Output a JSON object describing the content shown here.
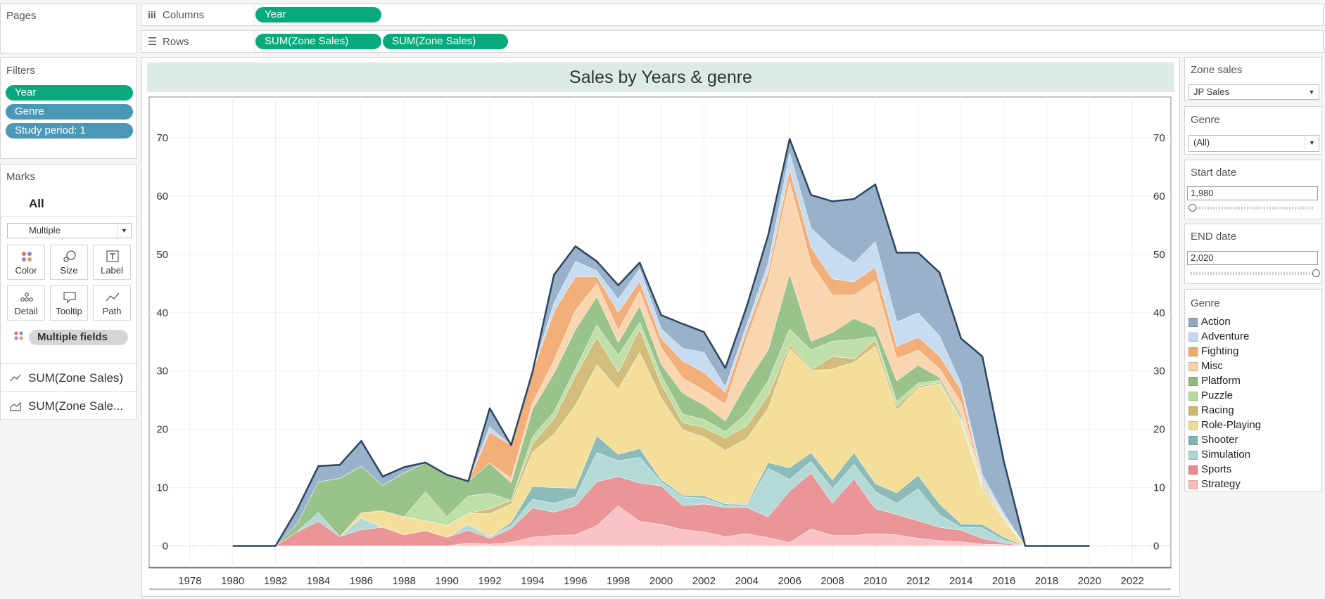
{
  "pages": {
    "title": "Pages"
  },
  "shelves": {
    "columns_label": "Columns",
    "rows_label": "Rows",
    "columns_pills": [
      "Year"
    ],
    "rows_pills": [
      "SUM(Zone Sales)",
      "SUM(Zone Sales)"
    ]
  },
  "filters": {
    "title": "Filters",
    "items": [
      "Year",
      "Genre",
      "Study period: 1"
    ]
  },
  "marks": {
    "title": "Marks",
    "tab_all": "All",
    "mark_type": "Multiple",
    "buttons": [
      "Color",
      "Size",
      "Label",
      "Detail",
      "Tooltip",
      "Path"
    ],
    "multiple_fields": "Multiple fields",
    "rows": [
      "SUM(Zone Sales)",
      "SUM(Zone Sale..."
    ]
  },
  "parameters": {
    "zone_sales_title": "Zone sales",
    "zone_sales_value": "JP Sales",
    "genre_title": "Genre",
    "genre_value": "(All)",
    "start_date_title": "Start date",
    "start_date_value": "1,980",
    "start_date_fraction": 0.0,
    "end_date_title": "END date",
    "end_date_value": "2,020",
    "end_date_fraction": 1.0
  },
  "legend": {
    "title": "Genre",
    "items": [
      {
        "label": "Action",
        "color": "#8fa8c4"
      },
      {
        "label": "Adventure",
        "color": "#c2d8ef"
      },
      {
        "label": "Fighting",
        "color": "#f2a66a"
      },
      {
        "label": "Misc",
        "color": "#f8d2a6"
      },
      {
        "label": "Platform",
        "color": "#8ebc7e"
      },
      {
        "label": "Puzzle",
        "color": "#b7dc9f"
      },
      {
        "label": "Racing",
        "color": "#cdb66e"
      },
      {
        "label": "Role-Playing",
        "color": "#f3dc8f"
      },
      {
        "label": "Shooter",
        "color": "#80b4b3"
      },
      {
        "label": "Simulation",
        "color": "#acd6d3"
      },
      {
        "label": "Sports",
        "color": "#e88a8d"
      },
      {
        "label": "Strategy",
        "color": "#f9bdbf"
      }
    ]
  },
  "chart_data": {
    "type": "area",
    "title": "Sales by Years & genre",
    "xlabel": "",
    "ylabel": "",
    "x": [
      1980,
      1981,
      1982,
      1983,
      1984,
      1985,
      1986,
      1987,
      1988,
      1989,
      1990,
      1991,
      1992,
      1993,
      1994,
      1995,
      1996,
      1997,
      1998,
      1999,
      2000,
      2001,
      2002,
      2003,
      2004,
      2005,
      2006,
      2007,
      2008,
      2009,
      2010,
      2011,
      2012,
      2013,
      2014,
      2015,
      2016,
      2017,
      2018,
      2019,
      2020
    ],
    "x_ticks": [
      1978,
      1980,
      1982,
      1984,
      1986,
      1988,
      1990,
      1992,
      1994,
      1996,
      1998,
      2000,
      2002,
      2004,
      2006,
      2008,
      2010,
      2012,
      2014,
      2016,
      2018,
      2020,
      2022
    ],
    "y_ticks": [
      0,
      10,
      20,
      30,
      40,
      50,
      60,
      70
    ],
    "xlim": [
      1976.1,
      2023.8
    ],
    "ylim": [
      -3.8,
      77
    ],
    "grid": true,
    "series": [
      {
        "name": "Strategy",
        "values": [
          0,
          0,
          0,
          0,
          0,
          0,
          0,
          0,
          0,
          0,
          0,
          0.5,
          0.3,
          0.6,
          1.5,
          1.8,
          1.9,
          3.5,
          6.9,
          4.2,
          3.7,
          2.8,
          2.4,
          1.6,
          2.1,
          1.4,
          0.6,
          2.9,
          1.8,
          1.8,
          2.1,
          1.9,
          1.3,
          0.9,
          0.7,
          0.3,
          0.2,
          0,
          0,
          0,
          0
        ]
      },
      {
        "name": "Sports",
        "values": [
          0,
          0,
          0,
          2.4,
          4.2,
          1.6,
          2.8,
          3.2,
          1.9,
          2.6,
          1.5,
          2.2,
          1,
          2.4,
          5,
          4,
          5,
          7.5,
          5,
          6.6,
          6.6,
          4.1,
          4.8,
          5,
          4.5,
          3.6,
          8.8,
          9.6,
          5.5,
          9.7,
          4.3,
          3.5,
          3,
          2.3,
          2,
          1,
          0.3,
          0,
          0,
          0,
          0
        ]
      },
      {
        "name": "Simulation",
        "values": [
          0,
          0,
          0,
          0,
          1.5,
          0,
          2,
          0,
          0,
          0,
          0,
          1,
          0.3,
          0.5,
          1.5,
          1.5,
          1.5,
          5,
          2.7,
          4.4,
          0.7,
          1.5,
          1,
          0.3,
          0.2,
          8.3,
          2,
          2,
          2.5,
          2.5,
          2.9,
          1.9,
          5.5,
          2.1,
          0.5,
          1.8,
          0.5,
          0,
          0,
          0,
          0
        ]
      },
      {
        "name": "Shooter",
        "values": [
          0,
          0,
          0,
          0,
          0,
          0,
          0,
          0,
          0,
          0,
          0,
          0,
          0,
          0.5,
          2.2,
          2.7,
          1.5,
          2.9,
          1.1,
          1.5,
          0.4,
          0.3,
          0.4,
          0.3,
          0.3,
          1,
          2,
          1.5,
          1.5,
          2,
          1.4,
          1.8,
          2.3,
          1.9,
          0.6,
          0.6,
          0.5,
          0,
          0,
          0,
          0
        ]
      },
      {
        "name": "Role-Playing",
        "values": [
          0,
          0,
          0,
          0,
          0,
          0,
          0.9,
          2.8,
          3.1,
          1.7,
          2,
          1.9,
          3.9,
          3.2,
          5.9,
          9.2,
          14.2,
          12.2,
          11.2,
          16.5,
          14,
          11.2,
          10.1,
          9.2,
          11.3,
          9.3,
          20.5,
          14.1,
          19,
          15.5,
          23.6,
          14.2,
          15,
          20.6,
          17.5,
          6.2,
          3,
          0,
          0,
          0,
          0
        ]
      },
      {
        "name": "Racing",
        "values": [
          0,
          0,
          0,
          0,
          0,
          0,
          0,
          0,
          0,
          0,
          0,
          0,
          0.9,
          0.6,
          1.4,
          2.6,
          5.1,
          4.7,
          2.9,
          4,
          2.4,
          1.3,
          1.6,
          2.1,
          2.2,
          2.2,
          0.6,
          0.1,
          2.2,
          0.6,
          1,
          0.7,
          0.3,
          0.2,
          0.3,
          0,
          0,
          0,
          0,
          0,
          0
        ]
      },
      {
        "name": "Puzzle",
        "values": [
          0,
          0,
          0,
          0,
          0,
          0,
          0,
          0,
          0,
          5,
          1.5,
          3,
          2.6,
          0,
          1.3,
          1.2,
          1.2,
          2.1,
          2.9,
          1.2,
          1.5,
          1.4,
          1.4,
          1.1,
          2.2,
          2.5,
          2.7,
          3.4,
          2.6,
          3.3,
          0.6,
          0.8,
          0.5,
          0.4,
          0.3,
          0.2,
          0.1,
          0,
          0,
          0,
          0
        ]
      },
      {
        "name": "Platform",
        "values": [
          0,
          0,
          0,
          1.3,
          5.3,
          10,
          8,
          4.4,
          7.5,
          5,
          7.2,
          2.5,
          5.2,
          3,
          4.7,
          6.6,
          6.7,
          4.9,
          2.2,
          2.8,
          1.9,
          3.6,
          2.5,
          1.8,
          5.2,
          5.3,
          9.5,
          1.5,
          1.5,
          3.6,
          1.6,
          3.5,
          3.1,
          0.5,
          0.5,
          0.3,
          0.2,
          0,
          0,
          0,
          0
        ]
      },
      {
        "name": "Misc",
        "values": [
          0,
          0,
          0,
          0,
          0,
          0,
          0,
          0,
          0,
          0,
          0,
          0,
          0,
          0.8,
          1.1,
          2.2,
          3.3,
          2.2,
          2.1,
          2.5,
          2.8,
          2.6,
          2.5,
          2.9,
          7.6,
          12,
          15.8,
          13.3,
          6.4,
          4,
          8,
          3.8,
          2.6,
          1.5,
          2.2,
          0.5,
          0.2,
          0,
          0,
          0,
          0
        ]
      },
      {
        "name": "Fighting",
        "values": [
          0,
          0,
          0,
          0,
          0,
          0,
          0,
          0,
          0,
          0,
          0,
          0,
          5.3,
          5.7,
          5.3,
          8.4,
          5.8,
          1.2,
          3.1,
          1.7,
          1.6,
          2.9,
          3.1,
          2,
          1.4,
          1.4,
          2.1,
          2.8,
          2.8,
          2.3,
          2.3,
          2.1,
          2.2,
          2.2,
          2.2,
          0.3,
          0.1,
          0,
          0,
          0,
          0
        ]
      },
      {
        "name": "Adventure",
        "values": [
          0,
          0,
          0,
          0,
          0,
          0,
          0,
          0,
          0,
          0,
          0,
          0,
          0.9,
          0,
          0,
          1.5,
          2.6,
          1,
          2.2,
          2.1,
          1.7,
          2.2,
          3.4,
          1,
          1,
          1.5,
          2.8,
          3.3,
          5.3,
          3.2,
          4.4,
          4.2,
          4.2,
          3.4,
          1,
          1,
          0.5,
          0,
          0,
          0,
          0
        ]
      },
      {
        "name": "Action",
        "values": [
          0,
          0,
          0,
          2.5,
          2.7,
          2.3,
          4.3,
          1.5,
          1,
          0,
          0,
          0,
          3.2,
          0,
          0,
          4.8,
          2.6,
          1.6,
          2.4,
          1.1,
          2.3,
          4.2,
          3.5,
          3.2,
          3.1,
          4.8,
          2.4,
          5.7,
          8,
          11,
          9.8,
          11.9,
          10.3,
          10.9,
          7.8,
          20.3,
          8.9,
          0,
          0,
          0,
          0
        ]
      }
    ]
  }
}
